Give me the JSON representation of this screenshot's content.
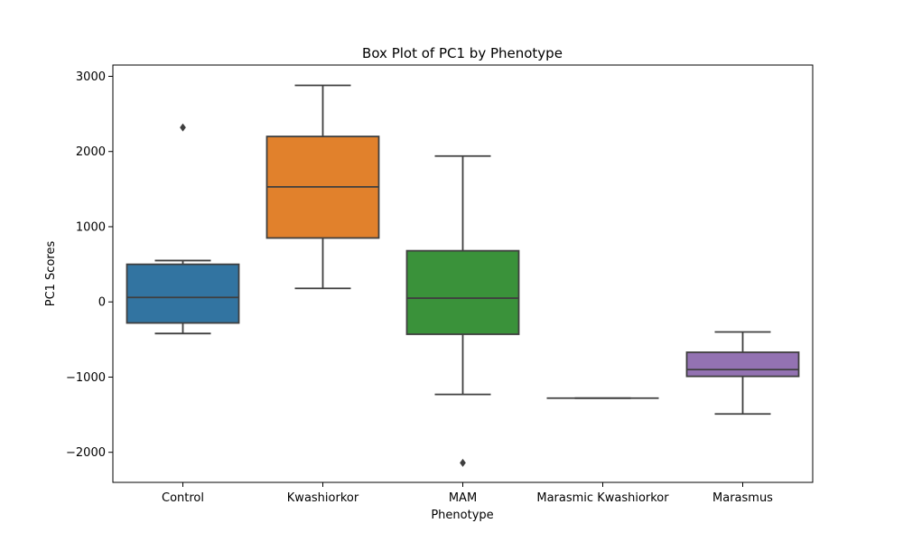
{
  "chart_data": {
    "type": "box",
    "title": "Box Plot of PC1 by Phenotype",
    "xlabel": "Phenotype",
    "ylabel": "PC1 Scores",
    "ylim": [
      -2400,
      3150
    ],
    "yticks": [
      3000,
      2000,
      1000,
      0,
      -1000,
      -2000
    ],
    "ytick_labels": [
      "3000",
      "2000",
      "1000",
      "0",
      "−1000",
      "−2000"
    ],
    "grid": false,
    "legend": "none",
    "categories": [
      "Control",
      "Kwashiorkor",
      "MAM",
      "Marasmic Kwashiorkor",
      "Marasmus"
    ],
    "boxes": [
      {
        "category": "Control",
        "whisker_low": -420,
        "q1": -280,
        "median": 60,
        "q3": 500,
        "whisker_high": 550,
        "outliers": [
          2320
        ],
        "color": "#3274a1"
      },
      {
        "category": "Kwashiorkor",
        "whisker_low": 180,
        "q1": 850,
        "median": 1530,
        "q3": 2200,
        "whisker_high": 2880,
        "outliers": [],
        "color": "#e1812c"
      },
      {
        "category": "MAM",
        "whisker_low": -1230,
        "q1": -430,
        "median": 50,
        "q3": 680,
        "whisker_high": 1940,
        "outliers": [
          -2140
        ],
        "color": "#3a923a"
      },
      {
        "category": "Marasmic Kwashiorkor",
        "whisker_low": -1280,
        "q1": -1280,
        "median": -1280,
        "q3": -1280,
        "whisker_high": -1280,
        "outliers": [],
        "color": "#c03d3e"
      },
      {
        "category": "Marasmus",
        "whisker_low": -1490,
        "q1": -990,
        "median": -900,
        "q3": -670,
        "whisker_high": -400,
        "outliers": [],
        "color": "#9372b2"
      }
    ]
  }
}
